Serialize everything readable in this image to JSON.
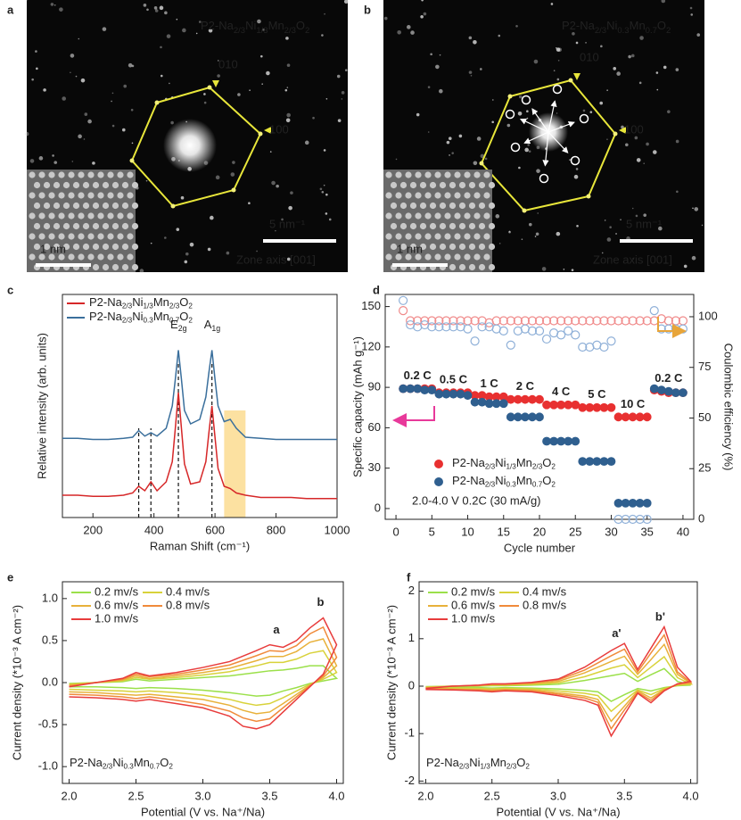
{
  "panels": [
    {
      "letter": "a",
      "formula": [
        "P2-Na",
        "2/3",
        "Ni",
        "1/3",
        "Mn",
        "2/3",
        "O",
        "2"
      ],
      "miller": [
        "010",
        "100"
      ],
      "scale_bar": "5 nm⁻¹",
      "inset_scale": "1 nm",
      "zone_axis": "Zone axis [001]"
    },
    {
      "letter": "b",
      "formula": [
        "P2-Na",
        "2/3",
        "Ni",
        "0.3",
        "Mn",
        "0.7",
        "O",
        "2"
      ],
      "miller": [
        "010",
        "100"
      ],
      "scale_bar": "5 nm⁻¹",
      "inset_scale": "1 nm",
      "zone_axis": "Zone axis [001]"
    }
  ],
  "chart_data": [
    {
      "type": "line",
      "panel_letter": "c",
      "xlabel": "Raman Shift (cm⁻¹)",
      "ylabel": "Relative intensity (arb. units)",
      "x": [
        100,
        150,
        200,
        250,
        300,
        330,
        350,
        370,
        390,
        410,
        440,
        460,
        470,
        480,
        490,
        500,
        520,
        550,
        570,
        580,
        590,
        600,
        610,
        630,
        650,
        670,
        700,
        750,
        800,
        850,
        900,
        950,
        1000
      ],
      "xlim": [
        100,
        1000
      ],
      "xticks": [
        200,
        400,
        600,
        800,
        1000
      ],
      "ylim": [
        0,
        100
      ],
      "legend": "upper left",
      "series": [
        {
          "name": [
            "P2-Na",
            "2/3",
            "Ni",
            "1/3",
            "Mn",
            "2/3",
            "O",
            "2"
          ],
          "color": "#d62728",
          "values": [
            10,
            10,
            9.5,
            9.5,
            10,
            11,
            14,
            12,
            16,
            12,
            16,
            25,
            40,
            56,
            40,
            24,
            15,
            16,
            25,
            38,
            50,
            36,
            22,
            14,
            13,
            11,
            10,
            9,
            9,
            9,
            8.5,
            8.5,
            8.5
          ]
        },
        {
          "name": [
            "P2-Na",
            "2/3",
            "Ni",
            "0.3",
            "Mn",
            "0.7",
            "O",
            "2"
          ],
          "color": "#3a6f9c",
          "values": [
            35.5,
            35.5,
            35,
            35,
            35.5,
            36,
            39,
            36.5,
            38,
            36.5,
            40,
            50,
            62,
            75,
            62,
            48,
            42,
            44,
            54,
            65,
            75,
            62,
            50,
            43,
            44,
            40,
            36,
            35.5,
            35,
            35,
            35,
            35,
            35
          ]
        }
      ],
      "dashed_lines": [
        350,
        390,
        480,
        590
      ],
      "highlight": [
        630,
        700
      ],
      "peak_labels": [
        [
          "E",
          "2g"
        ],
        [
          "A",
          "1g"
        ]
      ]
    },
    {
      "type": "scatter",
      "panel_letter": "d",
      "xlabel": "Cycle number",
      "ylabel": "Specific capacity (mAh g⁻¹)",
      "y2label": "Coulombic efficiency (%)",
      "x": [
        1,
        2,
        3,
        4,
        5,
        6,
        7,
        8,
        9,
        10,
        11,
        12,
        13,
        14,
        15,
        16,
        17,
        18,
        19,
        20,
        21,
        22,
        23,
        24,
        25,
        26,
        27,
        28,
        29,
        30,
        31,
        32,
        33,
        34,
        35,
        36,
        37,
        38,
        39,
        40
      ],
      "xlim": [
        -1.5,
        41.5
      ],
      "xticks": [
        0,
        5,
        10,
        15,
        20,
        25,
        30,
        35,
        40
      ],
      "ylim": [
        -8,
        159
      ],
      "yticks": [
        0,
        30,
        60,
        90,
        120,
        150
      ],
      "y2lim": [
        0,
        111
      ],
      "y2ticks": [
        0,
        25,
        50,
        75,
        100
      ],
      "series": [
        {
          "name": [
            "P2-Na",
            "2/3",
            "Ni",
            "1/3",
            "Mn",
            "2/3",
            "O",
            "2"
          ],
          "color": "#e83030",
          "marker": "filled",
          "values": [
            89,
            89,
            89,
            89,
            89,
            86,
            86,
            86,
            86,
            86,
            84,
            84,
            83,
            83,
            83,
            81,
            81,
            81,
            81,
            81,
            77,
            77,
            77,
            77,
            77,
            75,
            75,
            75,
            75,
            75,
            68,
            68,
            68,
            68,
            68,
            88,
            87,
            86,
            86,
            86
          ]
        },
        {
          "name": [
            "P2-Na",
            "2/3",
            "Ni",
            "0.3",
            "Mn",
            "0.7",
            "O",
            "2"
          ],
          "color": "#2f5f8f",
          "marker": "filled",
          "values": [
            89,
            89,
            89,
            88,
            88,
            85,
            85,
            85,
            85,
            84,
            79,
            79,
            78,
            78,
            78,
            68,
            68,
            68,
            68,
            68,
            50,
            50,
            50,
            50,
            50,
            35,
            35,
            35,
            35,
            35,
            4,
            4,
            4,
            4,
            4,
            89,
            88,
            87,
            86,
            86
          ]
        },
        {
          "color": "#f08a8a",
          "marker": "open",
          "axis": "y2",
          "values": [
            103,
            98,
            98,
            98,
            98,
            98,
            98,
            98,
            98,
            98,
            98,
            98,
            97,
            98,
            98,
            98,
            98,
            98,
            98,
            98,
            98,
            98,
            98,
            98,
            98,
            98,
            98,
            98,
            98,
            98,
            98,
            98,
            98,
            98,
            98,
            98,
            99,
            98,
            98,
            98
          ]
        },
        {
          "color": "#8fb0d8",
          "marker": "open",
          "axis": "y2",
          "values": [
            108,
            96,
            95,
            96,
            95,
            95,
            95,
            95,
            95,
            94,
            88,
            95,
            95,
            94,
            93,
            86,
            93,
            94,
            93,
            93,
            89,
            92,
            91,
            93,
            91,
            85,
            85,
            86,
            85,
            88,
            0,
            0,
            0,
            0,
            0,
            103,
            94,
            94,
            94,
            94
          ]
        }
      ],
      "rate_labels": [
        "0.2 C",
        "0.5 C",
        "1 C",
        "2 C",
        "4 C",
        "5 C",
        "10 C",
        "0.2 C"
      ],
      "annotation": "2.0-4.0 V 0.2C (30 mA/g)"
    },
    {
      "type": "line",
      "closed": true,
      "panel_letter": "e",
      "xlabel": "Potential (V vs. Na⁺/Na)",
      "ylabel": "Current density (*10⁻³ A cm⁻²)",
      "x": [
        2.0,
        2.2,
        2.4,
        2.5,
        2.6,
        2.8,
        3.0,
        3.2,
        3.4,
        3.5,
        3.6,
        3.7,
        3.8,
        3.9,
        4.0,
        3.9,
        3.8,
        3.7,
        3.6,
        3.5,
        3.4,
        3.3,
        3.2,
        3.0,
        2.8,
        2.6,
        2.5,
        2.4,
        2.2,
        2.0
      ],
      "xlim": [
        1.95,
        4.05
      ],
      "xticks": [
        {
          "value": 2,
          "label": "2.0"
        },
        2.5,
        {
          "value": 3,
          "label": "3.0"
        },
        3.5,
        {
          "value": 4,
          "label": "4.0"
        }
      ],
      "ylim": [
        -1.2,
        1.2
      ],
      "yticks": [
        {
          "value": -1,
          "label": "-1.0"
        },
        -0.5,
        {
          "value": 0,
          "label": "0.0"
        },
        0.5,
        {
          "value": 1,
          "label": "1.0"
        }
      ],
      "series": [
        {
          "name": "0.2 mv/s",
          "color": "#9be04a",
          "values": [
            -0.01,
            0.0,
            0.01,
            0.04,
            0.02,
            0.04,
            0.06,
            0.08,
            0.12,
            0.14,
            0.15,
            0.17,
            0.2,
            0.2,
            0.05,
            0.02,
            -0.01,
            -0.06,
            -0.1,
            -0.15,
            -0.16,
            -0.14,
            -0.12,
            -0.09,
            -0.07,
            -0.06,
            -0.07,
            -0.06,
            -0.05,
            -0.05
          ]
        },
        {
          "name": "0.4 mv/s",
          "color": "#d8d23a",
          "values": [
            -0.02,
            0.0,
            0.02,
            0.06,
            0.04,
            0.06,
            0.09,
            0.13,
            0.2,
            0.24,
            0.24,
            0.28,
            0.35,
            0.38,
            0.12,
            0.04,
            -0.02,
            -0.1,
            -0.18,
            -0.25,
            -0.27,
            -0.24,
            -0.2,
            -0.15,
            -0.12,
            -0.1,
            -0.11,
            -0.1,
            -0.09,
            -0.08
          ]
        },
        {
          "name": "0.6 mv/s",
          "color": "#e8b13a",
          "values": [
            -0.03,
            0.0,
            0.03,
            0.08,
            0.05,
            0.08,
            0.12,
            0.17,
            0.26,
            0.31,
            0.31,
            0.37,
            0.48,
            0.52,
            0.2,
            0.06,
            -0.03,
            -0.14,
            -0.25,
            -0.35,
            -0.37,
            -0.33,
            -0.27,
            -0.2,
            -0.17,
            -0.14,
            -0.15,
            -0.14,
            -0.12,
            -0.11
          ]
        },
        {
          "name": "0.8 mv/s",
          "color": "#f08a3a",
          "values": [
            -0.04,
            0.0,
            0.04,
            0.1,
            0.07,
            0.1,
            0.15,
            0.21,
            0.32,
            0.38,
            0.37,
            0.44,
            0.58,
            0.66,
            0.3,
            0.08,
            -0.04,
            -0.17,
            -0.3,
            -0.43,
            -0.46,
            -0.42,
            -0.34,
            -0.26,
            -0.21,
            -0.17,
            -0.19,
            -0.17,
            -0.15,
            -0.14
          ]
        },
        {
          "name": "1.0 mv/s",
          "color": "#e83c3c",
          "values": [
            -0.05,
            0.0,
            0.05,
            0.12,
            0.08,
            0.12,
            0.18,
            0.25,
            0.38,
            0.45,
            0.42,
            0.5,
            0.65,
            0.77,
            0.45,
            0.1,
            -0.05,
            -0.2,
            -0.35,
            -0.5,
            -0.55,
            -0.52,
            -0.4,
            -0.3,
            -0.25,
            -0.2,
            -0.22,
            -0.2,
            -0.18,
            -0.17
          ]
        }
      ],
      "peak_labels": [
        "a",
        "b"
      ],
      "formula": [
        "P2-Na",
        "2/3",
        "Ni",
        "0.3",
        "Mn",
        "0.7",
        "O",
        "2"
      ]
    },
    {
      "type": "line",
      "closed": true,
      "panel_letter": "f",
      "xlabel": "Potential (V vs. Na⁺/Na)",
      "ylabel": "Current density (*10⁻³ A cm⁻²)",
      "x": [
        2.0,
        2.2,
        2.4,
        2.5,
        2.6,
        2.8,
        3.0,
        3.2,
        3.4,
        3.5,
        3.6,
        3.7,
        3.8,
        3.9,
        4.0,
        3.9,
        3.8,
        3.7,
        3.6,
        3.5,
        3.4,
        3.3,
        3.2,
        3.0,
        2.8,
        2.6,
        2.5,
        2.4,
        2.2,
        2.0
      ],
      "xlim": [
        1.95,
        4.05
      ],
      "xticks": [
        {
          "value": 2,
          "label": "2.0"
        },
        2.5,
        {
          "value": 3,
          "label": "3.0"
        },
        3.5,
        {
          "value": 4,
          "label": "4.0"
        }
      ],
      "ylim": [
        -2.05,
        2.2
      ],
      "yticks": [
        -2,
        -1,
        0,
        1,
        2
      ],
      "series": [
        {
          "name": "0.2 mv/s",
          "color": "#9be04a",
          "values": [
            -0.01,
            0.0,
            0.0,
            0.01,
            0.01,
            0.02,
            0.04,
            0.12,
            0.22,
            0.27,
            0.1,
            0.24,
            0.37,
            0.1,
            0.02,
            0.01,
            -0.03,
            -0.1,
            -0.05,
            -0.18,
            -0.32,
            -0.12,
            -0.09,
            -0.06,
            -0.04,
            -0.03,
            -0.04,
            -0.03,
            -0.02,
            -0.02
          ]
        },
        {
          "name": "0.4 mv/s",
          "color": "#d8d23a",
          "values": [
            -0.02,
            0.0,
            0.01,
            0.02,
            0.02,
            0.04,
            0.07,
            0.2,
            0.38,
            0.45,
            0.18,
            0.4,
            0.62,
            0.18,
            0.04,
            0.02,
            -0.05,
            -0.18,
            -0.08,
            -0.3,
            -0.53,
            -0.2,
            -0.15,
            -0.1,
            -0.06,
            -0.05,
            -0.06,
            -0.05,
            -0.04,
            -0.04
          ]
        },
        {
          "name": "0.6 mv/s",
          "color": "#e8b13a",
          "values": [
            -0.03,
            0.0,
            0.01,
            0.03,
            0.03,
            0.05,
            0.1,
            0.28,
            0.52,
            0.63,
            0.25,
            0.56,
            0.88,
            0.25,
            0.06,
            0.03,
            -0.07,
            -0.25,
            -0.1,
            -0.42,
            -0.74,
            -0.28,
            -0.21,
            -0.14,
            -0.08,
            -0.07,
            -0.08,
            -0.07,
            -0.06,
            -0.05
          ]
        },
        {
          "name": "0.8 mv/s",
          "color": "#f08a3a",
          "values": [
            -0.04,
            0.0,
            0.02,
            0.04,
            0.04,
            0.07,
            0.13,
            0.34,
            0.64,
            0.78,
            0.3,
            0.7,
            1.08,
            0.3,
            0.08,
            0.04,
            -0.08,
            -0.3,
            -0.13,
            -0.5,
            -0.9,
            -0.34,
            -0.25,
            -0.17,
            -0.1,
            -0.08,
            -0.1,
            -0.08,
            -0.07,
            -0.06
          ]
        },
        {
          "name": "1.0 mv/s",
          "color": "#e83c3c",
          "values": [
            -0.05,
            0.0,
            0.02,
            0.05,
            0.05,
            0.08,
            0.15,
            0.4,
            0.75,
            0.9,
            0.35,
            0.8,
            1.25,
            0.4,
            0.1,
            0.05,
            -0.1,
            -0.35,
            -0.15,
            -0.6,
            -1.05,
            -0.4,
            -0.3,
            -0.2,
            -0.12,
            -0.1,
            -0.12,
            -0.1,
            -0.08,
            -0.07
          ]
        }
      ],
      "peak_labels": [
        "a'",
        "b'"
      ],
      "formula": [
        "P2-Na",
        "2/3",
        "Ni",
        "1/3",
        "Mn",
        "2/3",
        "O",
        "2"
      ]
    }
  ]
}
